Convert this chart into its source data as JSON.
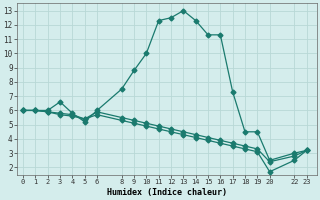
{
  "xlabel": "Humidex (Indice chaleur)",
  "bg_color": "#d4edec",
  "grid_color": "#b8d8d6",
  "line_color": "#1a7a6e",
  "xlim": [
    -0.5,
    23.8
  ],
  "ylim": [
    1.5,
    13.5
  ],
  "xticks": [
    0,
    1,
    2,
    3,
    4,
    5,
    6,
    8,
    9,
    10,
    11,
    12,
    13,
    14,
    15,
    16,
    17,
    18,
    19,
    20,
    22,
    23
  ],
  "yticks": [
    2,
    3,
    4,
    5,
    6,
    7,
    8,
    9,
    10,
    11,
    12,
    13
  ],
  "line1_x": [
    0,
    1,
    2,
    3,
    4,
    5,
    6,
    8,
    9,
    10,
    11,
    12,
    13,
    14,
    15,
    16,
    17,
    18,
    19,
    20,
    22,
    23
  ],
  "line1_y": [
    6.0,
    6.0,
    6.0,
    6.6,
    5.8,
    5.2,
    6.0,
    7.5,
    8.8,
    10.0,
    12.3,
    12.5,
    13.0,
    12.3,
    11.3,
    11.3,
    7.3,
    4.5,
    4.5,
    2.5,
    3.0,
    3.2
  ],
  "line2_x": [
    0,
    1,
    2,
    3,
    4,
    5,
    6,
    8,
    9,
    10,
    11,
    12,
    13,
    14,
    15,
    16,
    17,
    18,
    19,
    20,
    22,
    23
  ],
  "line2_y": [
    6.0,
    6.0,
    5.9,
    5.8,
    5.7,
    5.4,
    5.9,
    5.5,
    5.3,
    5.1,
    4.9,
    4.7,
    4.5,
    4.3,
    4.1,
    3.9,
    3.7,
    3.5,
    3.3,
    2.4,
    2.8,
    3.2
  ],
  "line3_x": [
    0,
    1,
    2,
    3,
    4,
    5,
    6,
    8,
    9,
    10,
    11,
    12,
    13,
    14,
    15,
    16,
    17,
    18,
    19,
    20,
    22,
    23
  ],
  "line3_y": [
    6.0,
    6.0,
    5.9,
    5.7,
    5.6,
    5.4,
    5.7,
    5.3,
    5.1,
    4.9,
    4.7,
    4.5,
    4.3,
    4.1,
    3.9,
    3.7,
    3.5,
    3.3,
    3.1,
    1.7,
    2.5,
    3.2
  ],
  "marker": "D",
  "markersize": 2.5,
  "linewidth": 0.9
}
